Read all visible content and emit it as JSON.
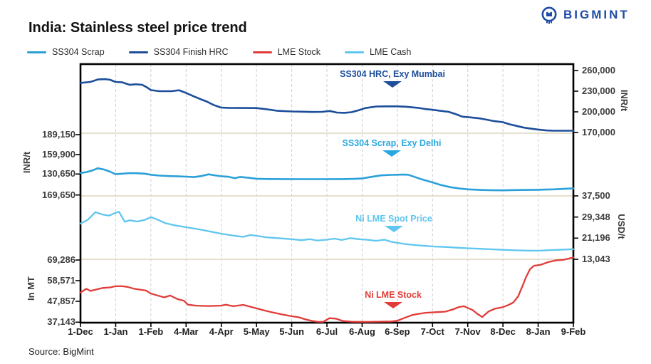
{
  "header": {
    "title": "India: Stainless steel price trend",
    "logo_text": "BIGMINT",
    "source": "Source: BigMint"
  },
  "legend": [
    {
      "label": "SS304 Scrap",
      "color": "#2aa0d8"
    },
    {
      "label": "SS304 Finish HRC",
      "color": "#1c4e9b"
    },
    {
      "label": "LME Stock",
      "color": "#e13c38"
    },
    {
      "label": "LME Cash",
      "color": "#5fc6ef"
    }
  ],
  "annotations": [
    {
      "label": "SS304 HRC, Exy Mumbai",
      "color": "#1c4e9b"
    },
    {
      "label": "SS304 Scrap, Exy Delhi",
      "color": "#29a8e0"
    },
    {
      "label": "Ni LME Spot Price",
      "color": "#5fc6ef"
    },
    {
      "label": "Ni LME Stock",
      "color": "#e13c38"
    }
  ],
  "chart_data": {
    "type": "line",
    "title": "India: Stainless steel price trend",
    "x_tick_labels": [
      "1-Dec",
      "1-Jan",
      "1-Feb",
      "4-Mar",
      "4-Apr",
      "5-May",
      "5-Jun",
      "6-Jul",
      "6-Aug",
      "6-Sep",
      "7-Oct",
      "7-Nov",
      "8-Dec",
      "8-Jan",
      "9-Feb"
    ],
    "grid": {
      "vertical": "dashed",
      "horizontal_lines_at": [
        "189,150 / 170,000",
        "169,650 / 37,500",
        "69,286 / 13,043"
      ]
    },
    "axes": {
      "left_inr": {
        "unit": "INR/t",
        "ticks": [
          "189,150",
          "159,900",
          "130,650",
          "169,650"
        ],
        "tick_values": [
          189150,
          159900,
          130650,
          169650
        ]
      },
      "left_mt": {
        "unit": "In MT",
        "ticks": [
          "69,286",
          "58,571",
          "47,857",
          "37,143"
        ],
        "tick_values": [
          69286,
          58571,
          47857,
          37143
        ]
      },
      "right_inr": {
        "unit": "INR/t",
        "ticks": [
          "260,000",
          "230,000",
          "200,000",
          "170,000"
        ],
        "tick_values": [
          260000,
          230000,
          200000,
          170000
        ]
      },
      "right_usd": {
        "unit": "USD/t",
        "ticks": [
          "37,500",
          "29,348",
          "21,196",
          "13,043"
        ],
        "tick_values": [
          37500,
          29348,
          21196,
          13043
        ]
      }
    },
    "series": [
      {
        "name": "SS304 Finish HRC",
        "color": "#1c4e9b",
        "axis": "right_inr",
        "width": 2.6,
        "points": [
          [
            0,
            242000
          ],
          [
            0.02,
            243500
          ],
          [
            0.035,
            247000
          ],
          [
            0.05,
            247500
          ],
          [
            0.06,
            246500
          ],
          [
            0.071,
            243500
          ],
          [
            0.085,
            242800
          ],
          [
            0.1,
            239200
          ],
          [
            0.112,
            240000
          ],
          [
            0.125,
            239300
          ],
          [
            0.135,
            235500
          ],
          [
            0.143,
            231500
          ],
          [
            0.16,
            230000
          ],
          [
            0.185,
            230000
          ],
          [
            0.2,
            231300
          ],
          [
            0.214,
            227500
          ],
          [
            0.23,
            222500
          ],
          [
            0.245,
            218000
          ],
          [
            0.256,
            215000
          ],
          [
            0.27,
            210000
          ],
          [
            0.285,
            206200
          ],
          [
            0.3,
            205800
          ],
          [
            0.33,
            205600
          ],
          [
            0.357,
            205500
          ],
          [
            0.38,
            203500
          ],
          [
            0.4,
            201500
          ],
          [
            0.429,
            200500
          ],
          [
            0.45,
            200200
          ],
          [
            0.47,
            199800
          ],
          [
            0.49,
            200000
          ],
          [
            0.506,
            201200
          ],
          [
            0.52,
            199000
          ],
          [
            0.535,
            198500
          ],
          [
            0.55,
            199500
          ],
          [
            0.565,
            202500
          ],
          [
            0.578,
            205500
          ],
          [
            0.6,
            207800
          ],
          [
            0.62,
            208000
          ],
          [
            0.643,
            208000
          ],
          [
            0.66,
            207500
          ],
          [
            0.685,
            205800
          ],
          [
            0.7,
            204000
          ],
          [
            0.714,
            203000
          ],
          [
            0.73,
            201500
          ],
          [
            0.747,
            200000
          ],
          [
            0.76,
            197000
          ],
          [
            0.775,
            193000
          ],
          [
            0.79,
            192000
          ],
          [
            0.81,
            190500
          ],
          [
            0.825,
            188500
          ],
          [
            0.84,
            186500
          ],
          [
            0.857,
            185000
          ],
          [
            0.87,
            182000
          ],
          [
            0.885,
            179500
          ],
          [
            0.9,
            177000
          ],
          [
            0.915,
            175500
          ],
          [
            0.929,
            174200
          ],
          [
            0.945,
            173000
          ],
          [
            0.96,
            172600
          ],
          [
            1,
            172600
          ]
        ]
      },
      {
        "name": "SS304 Scrap",
        "color": "#2aa0d8",
        "axis": "left_inr",
        "width": 2.6,
        "points": [
          [
            0,
            133000
          ],
          [
            0.012,
            134200
          ],
          [
            0.025,
            136800
          ],
          [
            0.035,
            139800
          ],
          [
            0.048,
            138000
          ],
          [
            0.06,
            134800
          ],
          [
            0.071,
            131200
          ],
          [
            0.085,
            131900
          ],
          [
            0.1,
            132700
          ],
          [
            0.115,
            132500
          ],
          [
            0.13,
            131900
          ],
          [
            0.143,
            130300
          ],
          [
            0.16,
            129100
          ],
          [
            0.18,
            128400
          ],
          [
            0.2,
            127900
          ],
          [
            0.214,
            127500
          ],
          [
            0.23,
            126900
          ],
          [
            0.245,
            128300
          ],
          [
            0.26,
            131000
          ],
          [
            0.272,
            129500
          ],
          [
            0.285,
            128100
          ],
          [
            0.3,
            127400
          ],
          [
            0.313,
            125300
          ],
          [
            0.324,
            127100
          ],
          [
            0.34,
            126100
          ],
          [
            0.357,
            124500
          ],
          [
            0.38,
            124100
          ],
          [
            0.41,
            124000
          ],
          [
            0.45,
            123900
          ],
          [
            0.49,
            123900
          ],
          [
            0.53,
            124000
          ],
          [
            0.555,
            124300
          ],
          [
            0.571,
            124800
          ],
          [
            0.59,
            127200
          ],
          [
            0.61,
            129400
          ],
          [
            0.63,
            130100
          ],
          [
            0.643,
            130300
          ],
          [
            0.655,
            130500
          ],
          [
            0.665,
            130300
          ],
          [
            0.675,
            127800
          ],
          [
            0.69,
            124200
          ],
          [
            0.705,
            121000
          ],
          [
            0.714,
            119200
          ],
          [
            0.73,
            115500
          ],
          [
            0.75,
            112200
          ],
          [
            0.77,
            110100
          ],
          [
            0.786,
            108900
          ],
          [
            0.81,
            108100
          ],
          [
            0.83,
            107700
          ],
          [
            0.857,
            107500
          ],
          [
            0.88,
            107900
          ],
          [
            0.91,
            108100
          ],
          [
            0.929,
            108300
          ],
          [
            0.96,
            108900
          ],
          [
            1,
            110400
          ]
        ]
      },
      {
        "name": "LME Cash",
        "color": "#5fc6ef",
        "axis": "right_usd",
        "width": 2.3,
        "points": [
          [
            0,
            26800
          ],
          [
            0.015,
            28300
          ],
          [
            0.03,
            31200
          ],
          [
            0.045,
            30300
          ],
          [
            0.058,
            29900
          ],
          [
            0.068,
            30700
          ],
          [
            0.078,
            31400
          ],
          [
            0.09,
            27500
          ],
          [
            0.1,
            28100
          ],
          [
            0.115,
            27600
          ],
          [
            0.13,
            28200
          ],
          [
            0.143,
            29300
          ],
          [
            0.158,
            28200
          ],
          [
            0.172,
            27000
          ],
          [
            0.19,
            26200
          ],
          [
            0.214,
            25400
          ],
          [
            0.24,
            24600
          ],
          [
            0.262,
            23800
          ],
          [
            0.286,
            22900
          ],
          [
            0.31,
            22200
          ],
          [
            0.33,
            21700
          ],
          [
            0.345,
            22400
          ],
          [
            0.357,
            22100
          ],
          [
            0.378,
            21500
          ],
          [
            0.4,
            21200
          ],
          [
            0.429,
            20800
          ],
          [
            0.448,
            20400
          ],
          [
            0.465,
            20800
          ],
          [
            0.48,
            20300
          ],
          [
            0.5,
            20600
          ],
          [
            0.515,
            21000
          ],
          [
            0.53,
            20500
          ],
          [
            0.548,
            21200
          ],
          [
            0.565,
            20800
          ],
          [
            0.58,
            20600
          ],
          [
            0.6,
            20200
          ],
          [
            0.617,
            20600
          ],
          [
            0.63,
            19800
          ],
          [
            0.643,
            19400
          ],
          [
            0.66,
            18900
          ],
          [
            0.68,
            18500
          ],
          [
            0.7,
            18200
          ],
          [
            0.714,
            18000
          ],
          [
            0.74,
            17800
          ],
          [
            0.765,
            17500
          ],
          [
            0.786,
            17300
          ],
          [
            0.81,
            17100
          ],
          [
            0.835,
            16900
          ],
          [
            0.857,
            16700
          ],
          [
            0.88,
            16500
          ],
          [
            0.905,
            16400
          ],
          [
            0.929,
            16350
          ],
          [
            0.95,
            16550
          ],
          [
            0.97,
            16700
          ],
          [
            1,
            16950
          ]
        ]
      },
      {
        "name": "LME Stock",
        "color": "#e13c38",
        "axis": "left_mt",
        "width": 2.3,
        "points": [
          [
            0,
            52500
          ],
          [
            0.012,
            54400
          ],
          [
            0.02,
            53300
          ],
          [
            0.03,
            53900
          ],
          [
            0.045,
            54800
          ],
          [
            0.06,
            55100
          ],
          [
            0.071,
            55700
          ],
          [
            0.082,
            55800
          ],
          [
            0.095,
            55400
          ],
          [
            0.108,
            54500
          ],
          [
            0.12,
            54000
          ],
          [
            0.133,
            53500
          ],
          [
            0.143,
            51900
          ],
          [
            0.158,
            50800
          ],
          [
            0.17,
            50000
          ],
          [
            0.182,
            50900
          ],
          [
            0.196,
            49200
          ],
          [
            0.21,
            48200
          ],
          [
            0.218,
            46200
          ],
          [
            0.235,
            45700
          ],
          [
            0.26,
            45500
          ],
          [
            0.285,
            45700
          ],
          [
            0.295,
            46200
          ],
          [
            0.31,
            45400
          ],
          [
            0.33,
            46100
          ],
          [
            0.347,
            45000
          ],
          [
            0.357,
            44300
          ],
          [
            0.372,
            43300
          ],
          [
            0.39,
            42200
          ],
          [
            0.408,
            41200
          ],
          [
            0.429,
            40200
          ],
          [
            0.443,
            39700
          ],
          [
            0.455,
            38700
          ],
          [
            0.468,
            37900
          ],
          [
            0.48,
            37400
          ],
          [
            0.492,
            37300
          ],
          [
            0.505,
            39200
          ],
          [
            0.518,
            39000
          ],
          [
            0.532,
            37800
          ],
          [
            0.55,
            37400
          ],
          [
            0.58,
            37300
          ],
          [
            0.61,
            37450
          ],
          [
            0.63,
            37500
          ],
          [
            0.643,
            37900
          ],
          [
            0.658,
            39400
          ],
          [
            0.672,
            40800
          ],
          [
            0.687,
            41500
          ],
          [
            0.7,
            42000
          ],
          [
            0.72,
            42300
          ],
          [
            0.74,
            42600
          ],
          [
            0.755,
            43700
          ],
          [
            0.768,
            45000
          ],
          [
            0.778,
            45400
          ],
          [
            0.795,
            43500
          ],
          [
            0.805,
            41500
          ],
          [
            0.815,
            39800
          ],
          [
            0.828,
            42700
          ],
          [
            0.842,
            44200
          ],
          [
            0.857,
            44900
          ],
          [
            0.868,
            46000
          ],
          [
            0.878,
            47300
          ],
          [
            0.888,
            50500
          ],
          [
            0.896,
            55300
          ],
          [
            0.904,
            60500
          ],
          [
            0.912,
            64500
          ],
          [
            0.92,
            66300
          ],
          [
            0.935,
            66900
          ],
          [
            0.95,
            68300
          ],
          [
            0.965,
            69100
          ],
          [
            0.98,
            69400
          ],
          [
            1,
            70600
          ]
        ]
      }
    ]
  }
}
